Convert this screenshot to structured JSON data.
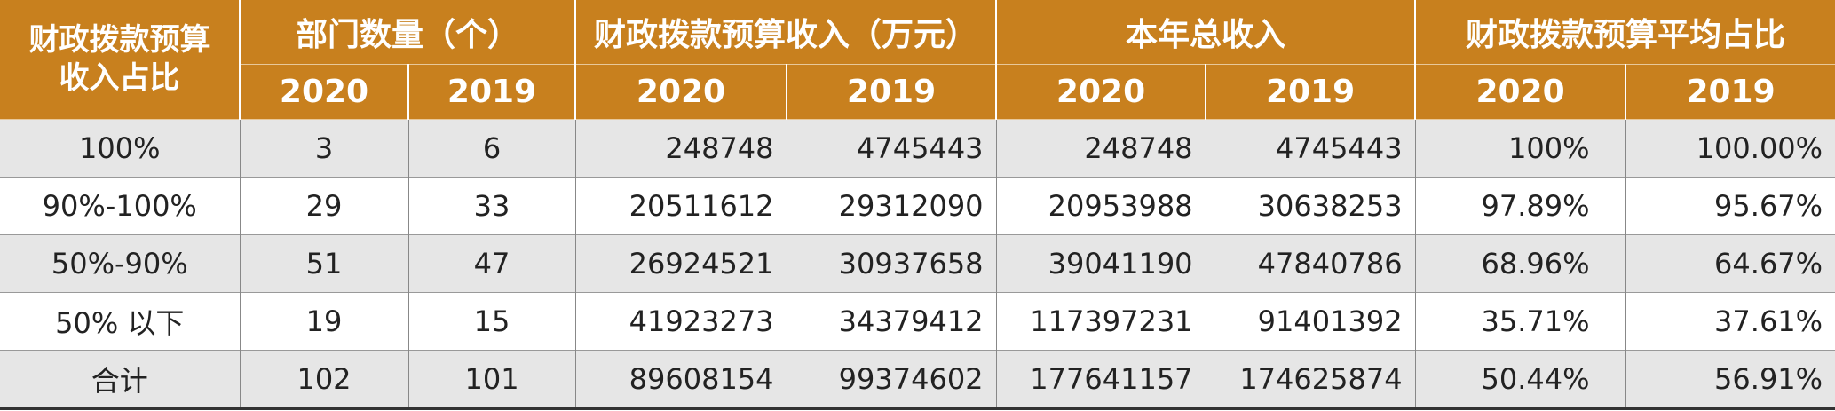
{
  "table": {
    "header": {
      "row1": [
        "财政拨款预算收入占比",
        "部门数量（个）",
        "财政拨款预算收入（万元）",
        "本年总收入",
        "财政拨款预算平均占比"
      ],
      "row2": [
        "2020",
        "2019",
        "2020",
        "2019",
        "2020",
        "2019",
        "2020",
        "2019"
      ]
    },
    "rows": [
      [
        "100%",
        "3",
        "6",
        "248748",
        "4745443",
        "248748",
        "4745443",
        "100%",
        "100.00%"
      ],
      [
        "90%-100%",
        "29",
        "33",
        "20511612",
        "29312090",
        "20953988",
        "30638253",
        "97.89%",
        "95.67%"
      ],
      [
        "50%-90%",
        "51",
        "47",
        "26924521",
        "30937658",
        "39041190",
        "47840786",
        "68.96%",
        "64.67%"
      ],
      [
        "50% 以下",
        "19",
        "15",
        "41923273",
        "34379412",
        "117397231",
        "91401392",
        "35.71%",
        "37.61%"
      ],
      [
        "合计",
        "102",
        "101",
        "89608154",
        "99374602",
        "177641157",
        "174625874",
        "50.44%",
        "56.91%"
      ]
    ]
  }
}
